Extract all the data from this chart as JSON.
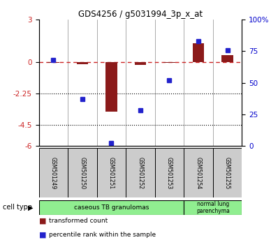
{
  "title": "GDS4256 / g5031994_3p_x_at",
  "samples": [
    "GSM501249",
    "GSM501250",
    "GSM501251",
    "GSM501252",
    "GSM501253",
    "GSM501254",
    "GSM501255"
  ],
  "transformed_count": [
    -0.05,
    -0.15,
    -3.55,
    -0.2,
    -0.05,
    1.3,
    0.45
  ],
  "percentile_rank": [
    68,
    37,
    2,
    28,
    52,
    83,
    76
  ],
  "ylim_left": [
    -6,
    3
  ],
  "ylim_right": [
    0,
    100
  ],
  "yticks_left": [
    3,
    0,
    -2.25,
    -4.5,
    -6
  ],
  "yticks_right": [
    100,
    75,
    50,
    25,
    0
  ],
  "ytick_labels_right": [
    "100%",
    "75",
    "50",
    "25",
    "0"
  ],
  "hlines": [
    -2.25,
    -4.5
  ],
  "bar_color_red": "#8B1A1A",
  "marker_color_blue": "#2222CC",
  "dashed_line_color": "#CC2222",
  "legend_red_label": "transformed count",
  "legend_blue_label": "percentile rank within the sample",
  "cell_type_label": "cell type",
  "bar_width": 0.4,
  "marker_size": 5
}
